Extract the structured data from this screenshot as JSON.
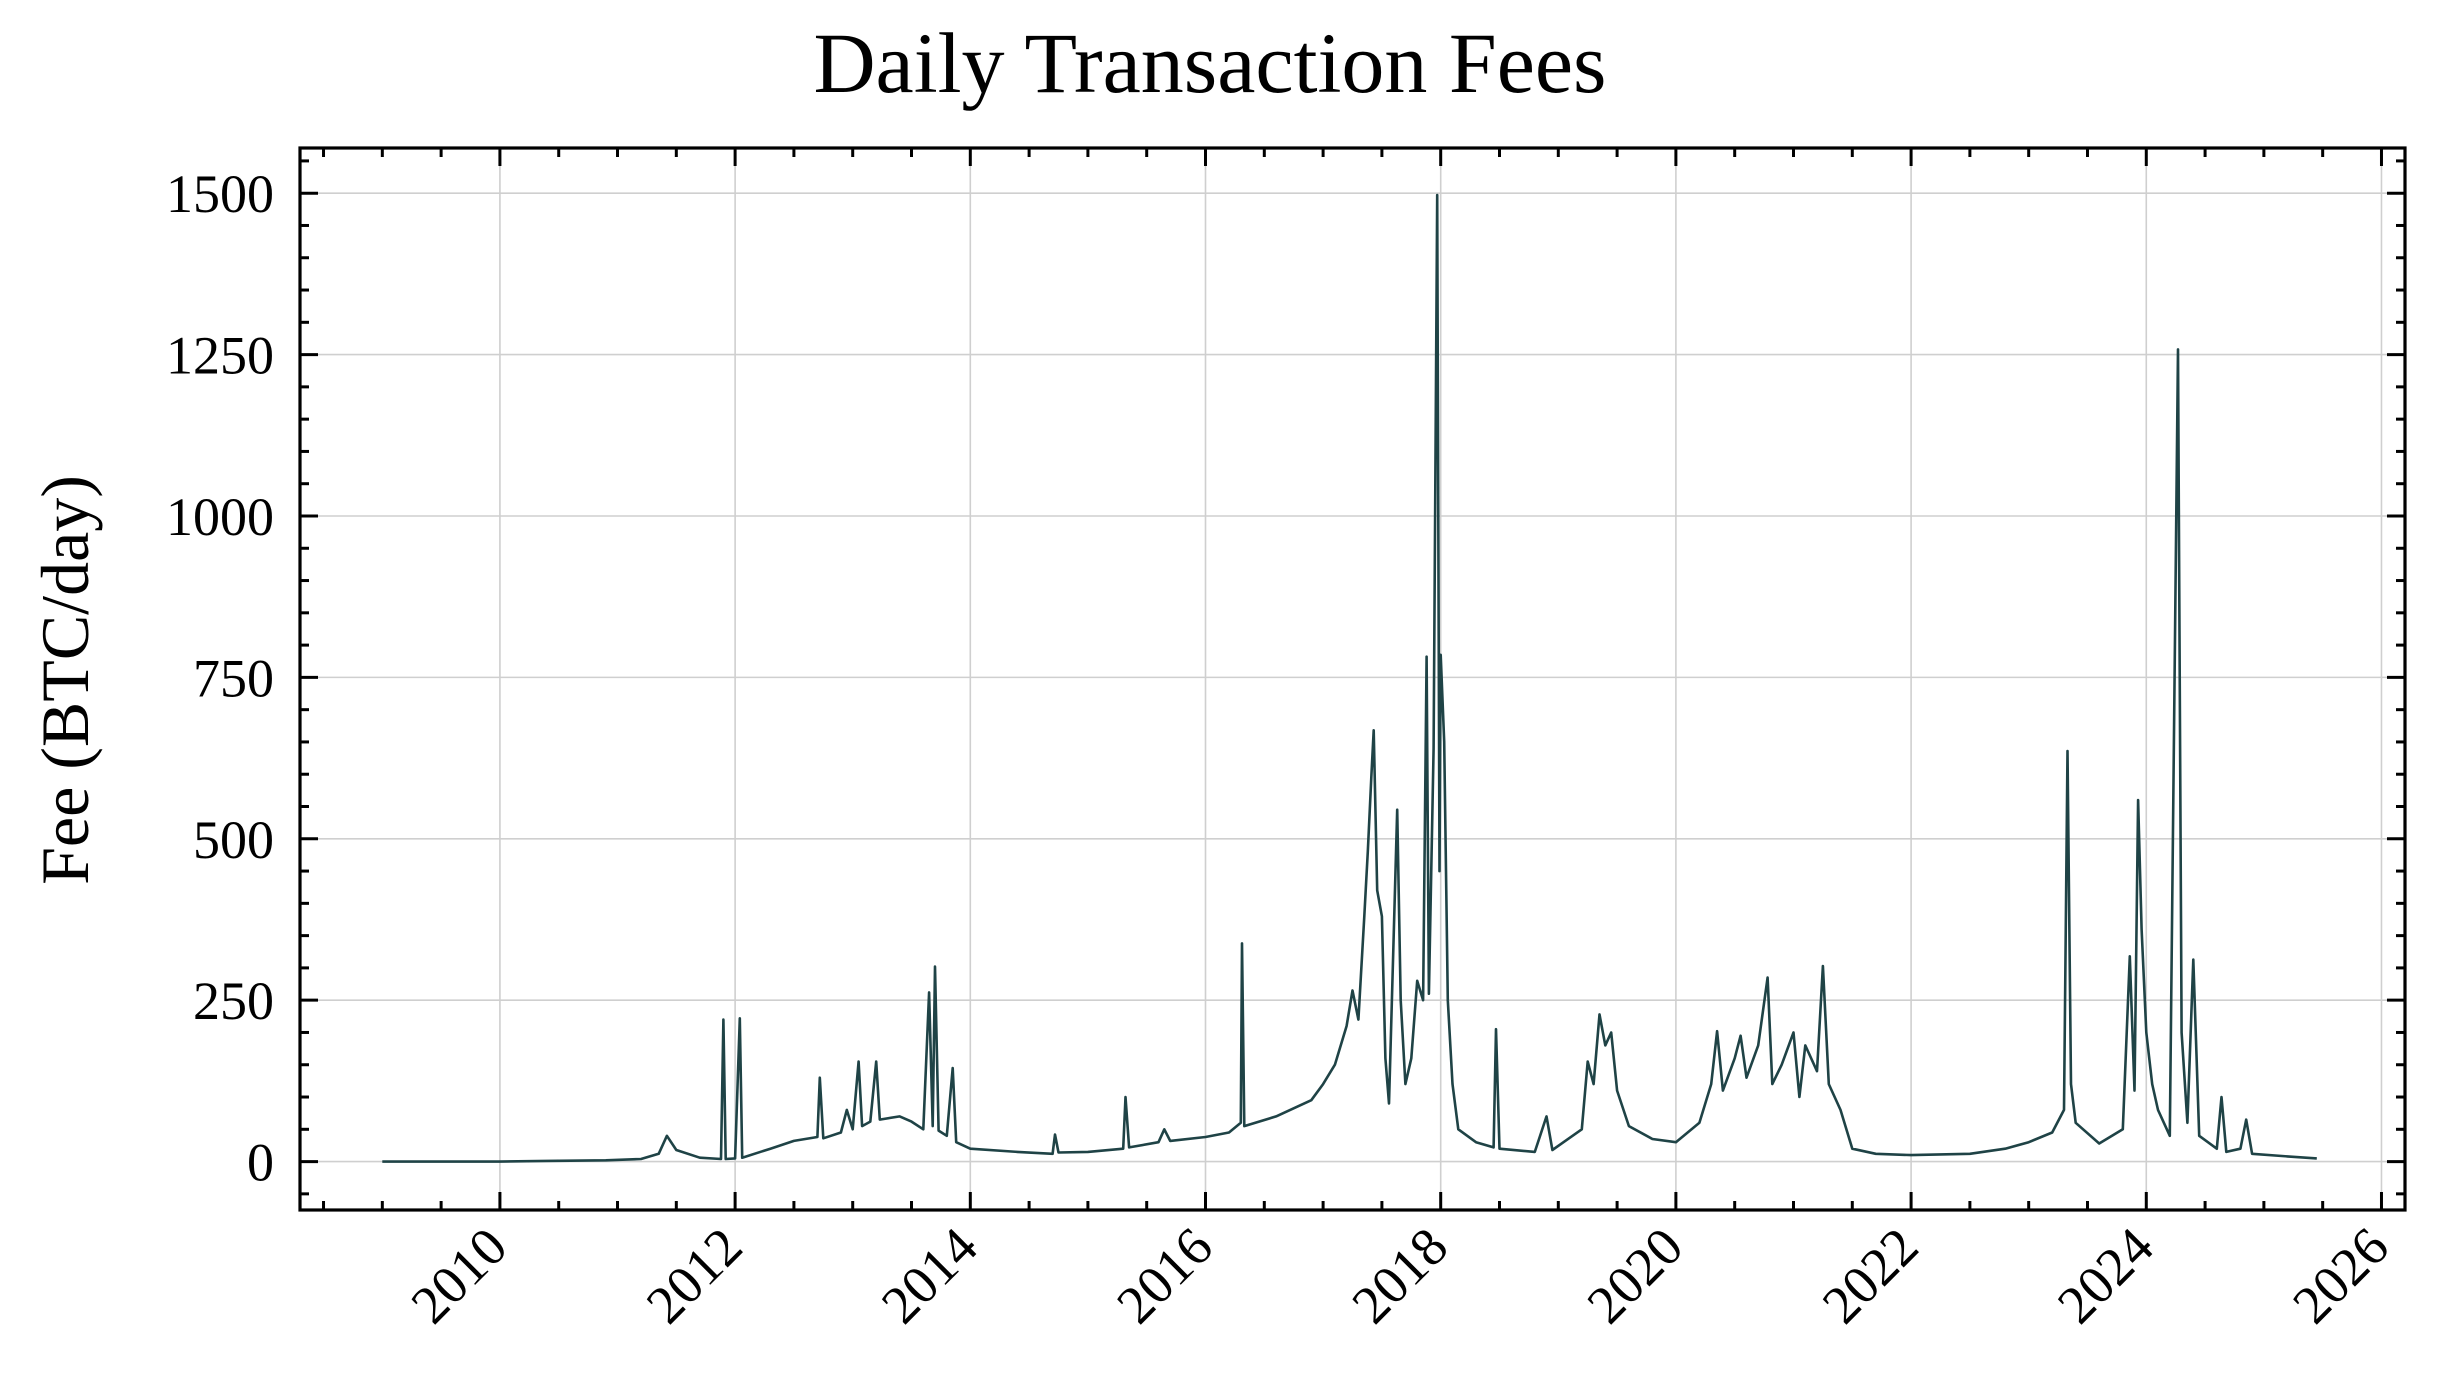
{
  "chart_data": {
    "type": "line",
    "title": "Daily Transaction Fees",
    "xlabel": "",
    "ylabel": "Fee (BTC/day)",
    "xlim": [
      2008.3,
      2026.2
    ],
    "ylim": [
      -75,
      1570
    ],
    "x_ticks": [
      2010,
      2012,
      2014,
      2016,
      2018,
      2020,
      2022,
      2024,
      2026
    ],
    "x_tick_labels": [
      "2010",
      "2012",
      "2014",
      "2016",
      "2018",
      "2020",
      "2022",
      "2024",
      "2026"
    ],
    "y_ticks": [
      0,
      250,
      500,
      750,
      1000,
      1250,
      1500
    ],
    "y_tick_labels": [
      "0",
      "250",
      "500",
      "750",
      "1000",
      "1250",
      "1500"
    ],
    "grid": true,
    "series": [
      {
        "name": "Daily transaction fees",
        "color": "#1f4346",
        "points": [
          [
            2009.0,
            0
          ],
          [
            2010.0,
            0
          ],
          [
            2010.4,
            1
          ],
          [
            2010.9,
            2
          ],
          [
            2011.2,
            4
          ],
          [
            2011.35,
            12
          ],
          [
            2011.42,
            40
          ],
          [
            2011.5,
            18
          ],
          [
            2011.7,
            6
          ],
          [
            2011.88,
            4
          ],
          [
            2011.9,
            220
          ],
          [
            2011.92,
            4
          ],
          [
            2012.0,
            5
          ],
          [
            2012.04,
            222
          ],
          [
            2012.06,
            6
          ],
          [
            2012.3,
            20
          ],
          [
            2012.5,
            32
          ],
          [
            2012.7,
            38
          ],
          [
            2012.72,
            130
          ],
          [
            2012.75,
            36
          ],
          [
            2012.9,
            45
          ],
          [
            2012.95,
            80
          ],
          [
            2013.0,
            50
          ],
          [
            2013.05,
            155
          ],
          [
            2013.08,
            55
          ],
          [
            2013.15,
            62
          ],
          [
            2013.2,
            155
          ],
          [
            2013.23,
            65
          ],
          [
            2013.4,
            70
          ],
          [
            2013.5,
            62
          ],
          [
            2013.6,
            50
          ],
          [
            2013.65,
            262
          ],
          [
            2013.68,
            55
          ],
          [
            2013.7,
            302
          ],
          [
            2013.73,
            48
          ],
          [
            2013.8,
            40
          ],
          [
            2013.85,
            145
          ],
          [
            2013.88,
            30
          ],
          [
            2014.0,
            20
          ],
          [
            2014.4,
            15
          ],
          [
            2014.7,
            12
          ],
          [
            2014.72,
            42
          ],
          [
            2014.75,
            14
          ],
          [
            2015.0,
            15
          ],
          [
            2015.3,
            20
          ],
          [
            2015.32,
            100
          ],
          [
            2015.35,
            22
          ],
          [
            2015.6,
            30
          ],
          [
            2015.65,
            50
          ],
          [
            2015.7,
            32
          ],
          [
            2016.0,
            38
          ],
          [
            2016.2,
            45
          ],
          [
            2016.3,
            60
          ],
          [
            2016.31,
            338
          ],
          [
            2016.33,
            55
          ],
          [
            2016.6,
            70
          ],
          [
            2016.9,
            95
          ],
          [
            2017.0,
            120
          ],
          [
            2017.1,
            150
          ],
          [
            2017.2,
            210
          ],
          [
            2017.25,
            265
          ],
          [
            2017.3,
            220
          ],
          [
            2017.35,
            380
          ],
          [
            2017.38,
            480
          ],
          [
            2017.41,
            595
          ],
          [
            2017.43,
            668
          ],
          [
            2017.46,
            420
          ],
          [
            2017.5,
            380
          ],
          [
            2017.53,
            160
          ],
          [
            2017.56,
            90
          ],
          [
            2017.6,
            350
          ],
          [
            2017.63,
            545
          ],
          [
            2017.66,
            250
          ],
          [
            2017.7,
            120
          ],
          [
            2017.75,
            160
          ],
          [
            2017.8,
            280
          ],
          [
            2017.85,
            250
          ],
          [
            2017.88,
            782
          ],
          [
            2017.9,
            260
          ],
          [
            2017.94,
            640
          ],
          [
            2017.97,
            1497
          ],
          [
            2017.99,
            450
          ],
          [
            2018.0,
            785
          ],
          [
            2018.03,
            650
          ],
          [
            2018.06,
            250
          ],
          [
            2018.1,
            120
          ],
          [
            2018.15,
            50
          ],
          [
            2018.3,
            30
          ],
          [
            2018.45,
            22
          ],
          [
            2018.47,
            205
          ],
          [
            2018.5,
            20
          ],
          [
            2018.8,
            15
          ],
          [
            2018.9,
            70
          ],
          [
            2018.95,
            18
          ],
          [
            2019.2,
            50
          ],
          [
            2019.25,
            155
          ],
          [
            2019.3,
            120
          ],
          [
            2019.35,
            228
          ],
          [
            2019.4,
            180
          ],
          [
            2019.45,
            200
          ],
          [
            2019.5,
            110
          ],
          [
            2019.6,
            55
          ],
          [
            2019.8,
            35
          ],
          [
            2020.0,
            30
          ],
          [
            2020.2,
            60
          ],
          [
            2020.3,
            120
          ],
          [
            2020.35,
            202
          ],
          [
            2020.4,
            110
          ],
          [
            2020.5,
            160
          ],
          [
            2020.55,
            195
          ],
          [
            2020.6,
            130
          ],
          [
            2020.7,
            180
          ],
          [
            2020.78,
            285
          ],
          [
            2020.82,
            120
          ],
          [
            2020.9,
            150
          ],
          [
            2021.0,
            200
          ],
          [
            2021.05,
            100
          ],
          [
            2021.1,
            180
          ],
          [
            2021.2,
            140
          ],
          [
            2021.25,
            303
          ],
          [
            2021.3,
            120
          ],
          [
            2021.4,
            80
          ],
          [
            2021.5,
            20
          ],
          [
            2021.7,
            12
          ],
          [
            2022.0,
            10
          ],
          [
            2022.5,
            12
          ],
          [
            2022.8,
            20
          ],
          [
            2023.0,
            30
          ],
          [
            2023.2,
            45
          ],
          [
            2023.3,
            80
          ],
          [
            2023.33,
            636
          ],
          [
            2023.36,
            120
          ],
          [
            2023.4,
            60
          ],
          [
            2023.6,
            28
          ],
          [
            2023.8,
            50
          ],
          [
            2023.86,
            318
          ],
          [
            2023.9,
            110
          ],
          [
            2023.93,
            560
          ],
          [
            2023.96,
            360
          ],
          [
            2024.0,
            200
          ],
          [
            2024.05,
            120
          ],
          [
            2024.1,
            80
          ],
          [
            2024.2,
            40
          ],
          [
            2024.27,
            1258
          ],
          [
            2024.3,
            200
          ],
          [
            2024.35,
            60
          ],
          [
            2024.4,
            313
          ],
          [
            2024.45,
            40
          ],
          [
            2024.6,
            20
          ],
          [
            2024.64,
            100
          ],
          [
            2024.68,
            15
          ],
          [
            2024.8,
            20
          ],
          [
            2024.85,
            65
          ],
          [
            2024.9,
            12
          ],
          [
            2025.2,
            8
          ],
          [
            2025.45,
            5
          ]
        ]
      }
    ]
  }
}
